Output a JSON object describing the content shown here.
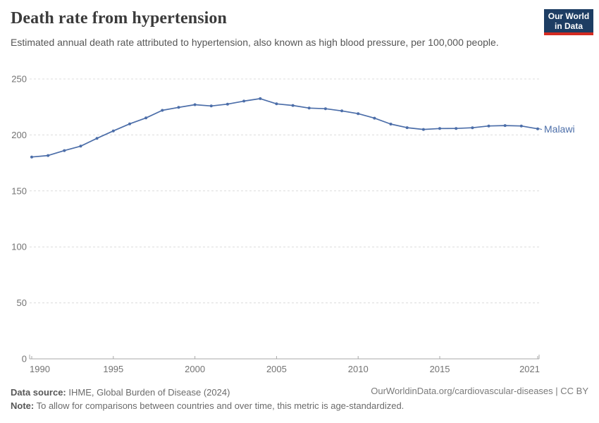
{
  "header": {
    "title": "Death rate from hypertension",
    "subtitle": "Estimated annual death rate attributed to hypertension, also known as high blood pressure, per 100,000 people.",
    "logo": {
      "line1": "Our World",
      "line2": "in Data"
    }
  },
  "chart_data": {
    "type": "line",
    "title": "Death rate from hypertension",
    "x": [
      1990,
      1991,
      1992,
      1993,
      1994,
      1995,
      1996,
      1997,
      1998,
      1999,
      2000,
      2001,
      2002,
      2003,
      2004,
      2005,
      2006,
      2007,
      2008,
      2009,
      2010,
      2011,
      2012,
      2013,
      2014,
      2015,
      2016,
      2017,
      2018,
      2019,
      2020,
      2021
    ],
    "series": [
      {
        "name": "Malawi",
        "color": "#4C6EA9",
        "values": [
          180.3,
          181.6,
          186.0,
          190.0,
          197.0,
          203.6,
          209.9,
          215.2,
          222.0,
          224.6,
          227.0,
          225.9,
          227.5,
          230.2,
          232.4,
          227.8,
          226.3,
          224.0,
          223.4,
          221.5,
          219.0,
          215.0,
          209.7,
          206.5,
          204.9,
          205.7,
          205.8,
          206.4,
          208.0,
          208.4,
          208.0,
          205.5
        ]
      }
    ],
    "x_ticks": [
      1990,
      1995,
      2000,
      2005,
      2010,
      2015,
      2021
    ],
    "y_ticks": [
      0,
      50,
      100,
      150,
      200,
      250
    ],
    "xlim": [
      1990,
      2021
    ],
    "ylim": [
      0,
      250
    ],
    "xlabel": "",
    "ylabel": "",
    "grid": "horizontal-dashed",
    "legend_position": "end-of-line-label",
    "marker": "dot"
  },
  "colors": {
    "line": "#4C6EA9",
    "grid": "#dcdcdc",
    "axis": "#a8a8a8",
    "tick_label": "#737373",
    "end_label": "#4C6EA9"
  },
  "footer": {
    "data_source_label": "Data source:",
    "data_source": " IHME, Global Burden of Disease (2024)",
    "note_label": "Note:",
    "note": " To allow for comparisons between countries and over time, this metric is age-standardized.",
    "citation": "OurWorldinData.org/cardiovascular-diseases | CC BY"
  }
}
